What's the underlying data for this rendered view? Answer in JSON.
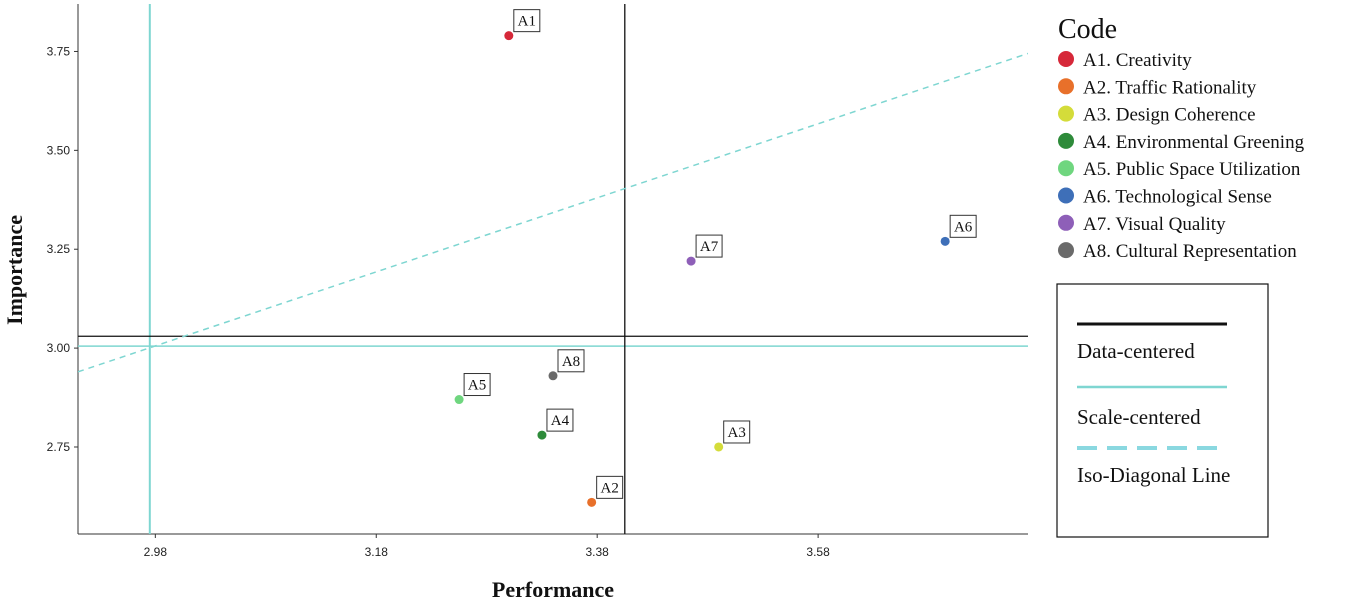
{
  "chart_data": {
    "type": "scatter",
    "title": "",
    "xlabel": "Performance",
    "ylabel": "Importance",
    "xlim": [
      2.91,
      3.77
    ],
    "ylim": [
      2.53,
      3.87
    ],
    "x_ticks": [
      "2.98",
      "3.18",
      "3.38",
      "3.58"
    ],
    "y_ticks": [
      "2.75",
      "3.00",
      "3.25",
      "3.50",
      "3.75"
    ],
    "grid": false,
    "legend_title": "Code",
    "legend_position": "right",
    "points": [
      {
        "label": "A1",
        "legend": "A1. Creativity",
        "x": 3.3,
        "y": 3.79,
        "color": "#d62839"
      },
      {
        "label": "A2",
        "legend": "A2. Traffic Rationality",
        "x": 3.375,
        "y": 2.61,
        "color": "#e8702a"
      },
      {
        "label": "A3",
        "legend": "A3. Design Coherence",
        "x": 3.49,
        "y": 2.75,
        "color": "#d4dc3a"
      },
      {
        "label": "A4",
        "legend": "A4. Environmental Greening",
        "x": 3.33,
        "y": 2.78,
        "color": "#2e8b3a"
      },
      {
        "label": "A5",
        "legend": "A5. Public Space Utilization",
        "x": 3.255,
        "y": 2.87,
        "color": "#6fd67f"
      },
      {
        "label": "A6",
        "legend": "A6. Technological Sense",
        "x": 3.695,
        "y": 3.27,
        "color": "#3e6fb8"
      },
      {
        "label": "A7",
        "legend": "A7. Visual Quality",
        "x": 3.465,
        "y": 3.22,
        "color": "#8e5fb8"
      },
      {
        "label": "A8",
        "legend": "A8. Cultural Representation",
        "x": 3.34,
        "y": 2.93,
        "color": "#6a6a6a"
      }
    ],
    "reference_lines": {
      "data_centered": {
        "label": "Data-centered",
        "x": 3.405,
        "y": 3.03,
        "color": "#111111"
      },
      "scale_centered": {
        "label": "Scale-centered",
        "x": 2.975,
        "y": 3.005,
        "color": "#7ed6d1"
      },
      "iso_diagonal": {
        "label": "Iso-Diagonal Line",
        "from": [
          2.91,
          2.94
        ],
        "to": [
          3.77,
          3.745
        ],
        "color": "#7ed6d1"
      }
    }
  }
}
